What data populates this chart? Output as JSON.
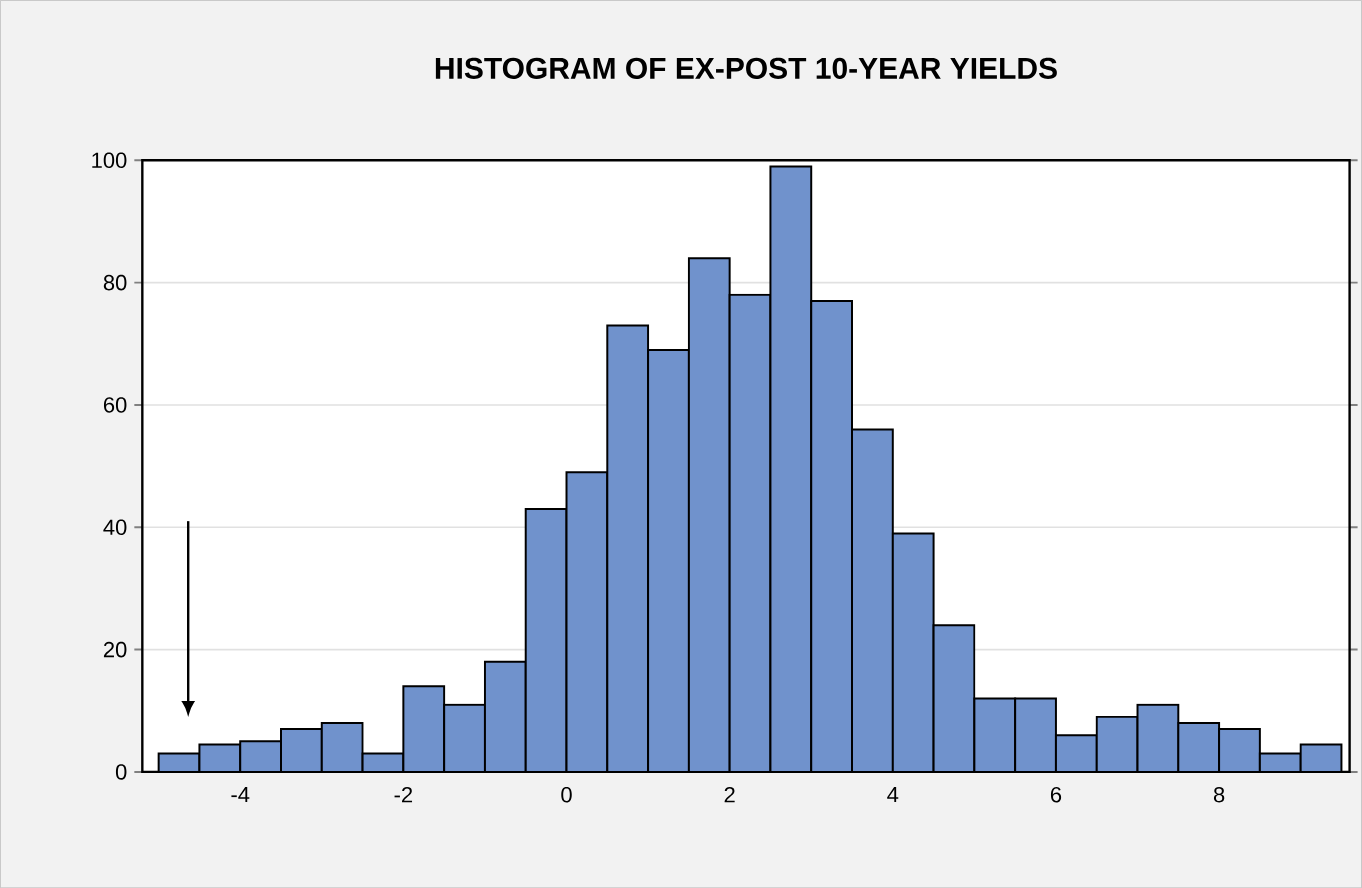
{
  "chart_data": {
    "type": "histogram",
    "title": "HISTOGRAM OF EX-POST 10-YEAR YIELDS",
    "bins": [
      -5,
      -4.5,
      -4,
      -3.5,
      -3,
      -2.5,
      -2,
      -1.5,
      -1,
      -0.5,
      0,
      0.5,
      1,
      1.5,
      2,
      2.5,
      3,
      3.5,
      4,
      4.5,
      5,
      5.5,
      6,
      6.5,
      7,
      7.5,
      8,
      8.5,
      9,
      9.5
    ],
    "values": [
      3,
      4.5,
      5,
      7,
      8,
      3,
      14,
      11,
      18,
      43,
      49,
      73,
      69,
      84,
      78,
      99,
      77,
      56,
      39,
      24,
      12,
      12,
      6,
      9,
      11,
      8,
      7,
      3,
      4.5
    ],
    "color": "#7092cc",
    "xlim": [
      -5.2,
      9.6
    ],
    "ylim": [
      0,
      100
    ],
    "xticks": [
      -4,
      -2,
      0,
      2,
      4,
      6,
      8
    ],
    "yticks": [
      0,
      20,
      40,
      60,
      80,
      100
    ],
    "grid": "y"
  }
}
